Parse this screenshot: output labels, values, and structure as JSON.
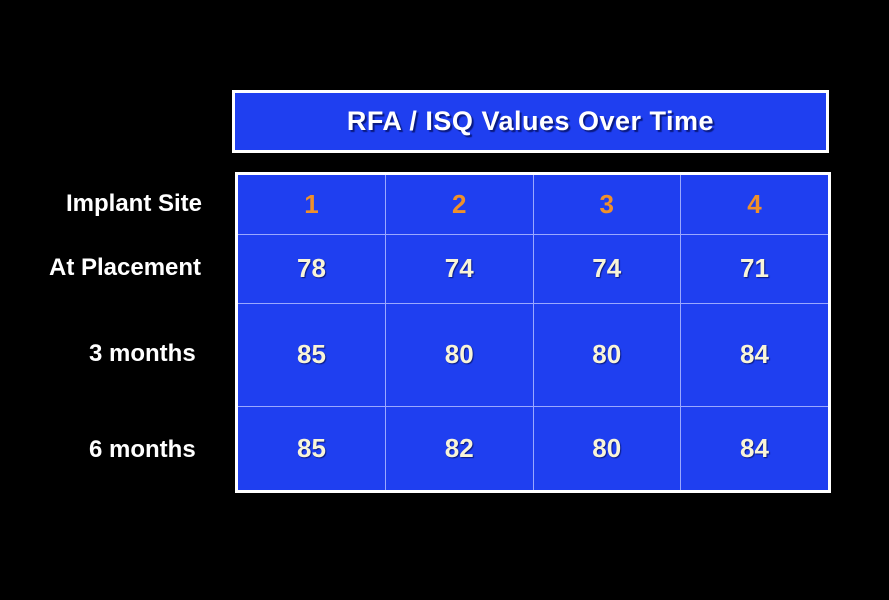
{
  "chart_data": {
    "type": "table",
    "title": "RFA / ISQ Values Over Time",
    "header_label": "Implant Site",
    "columns": [
      "1",
      "2",
      "3",
      "4"
    ],
    "rows": [
      {
        "label": "At Placement",
        "values": [
          "78",
          "74",
          "74",
          "71"
        ]
      },
      {
        "label": "3 months",
        "values": [
          "85",
          "80",
          "80",
          "84"
        ]
      },
      {
        "label": "6 months",
        "values": [
          "85",
          "82",
          "80",
          "84"
        ]
      }
    ]
  },
  "colors": {
    "background": "#000000",
    "panel": "#1f3ff0",
    "site_number": "#f0902a",
    "value_text": "#f8f4d8"
  }
}
